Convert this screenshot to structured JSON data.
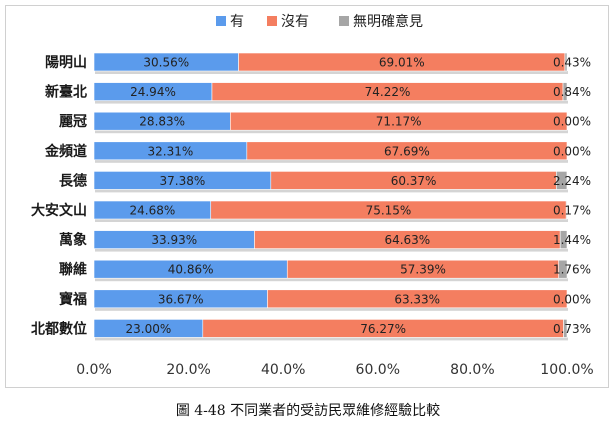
{
  "chart_data": {
    "type": "bar",
    "orientation": "horizontal",
    "stacked": "percent",
    "categories": [
      "陽明山",
      "新臺北",
      "麗冠",
      "金頻道",
      "長德",
      "大安文山",
      "萬象",
      "聯維",
      "寶福",
      "北都數位"
    ],
    "series": [
      {
        "name": "有",
        "color": "#5b9bec",
        "values": [
          30.56,
          24.94,
          28.83,
          32.31,
          37.38,
          24.68,
          33.93,
          40.86,
          36.67,
          23.0
        ],
        "labels": [
          "30.56%",
          "24.94%",
          "28.83%",
          "32.31%",
          "37.38%",
          "24.68%",
          "33.93%",
          "40.86%",
          "36.67%",
          "23.00%"
        ]
      },
      {
        "name": "沒有",
        "color": "#f47e60",
        "values": [
          69.01,
          74.22,
          71.17,
          67.69,
          60.37,
          75.15,
          64.63,
          57.39,
          63.33,
          76.27
        ],
        "labels": [
          "69.01%",
          "74.22%",
          "71.17%",
          "67.69%",
          "60.37%",
          "75.15%",
          "64.63%",
          "57.39%",
          "63.33%",
          "76.27%"
        ]
      },
      {
        "name": "無明確意見",
        "color": "#a6a6a6",
        "values": [
          0.43,
          0.84,
          0.0,
          0.0,
          2.24,
          0.17,
          1.44,
          1.76,
          0.0,
          0.73
        ],
        "labels": [
          "0.43%",
          "0.84%",
          "0.00%",
          "0.00%",
          "2.24%",
          "0.17%",
          "1.44%",
          "1.76%",
          "0.00%",
          "0.73%"
        ]
      }
    ],
    "xlim": [
      0,
      100
    ],
    "xticks": [
      "0.0%",
      "20.0%",
      "40.0%",
      "60.0%",
      "80.0%",
      "100.0%"
    ],
    "legend_position": "top",
    "grid": false
  },
  "caption": "圖 4-48 不同業者的受訪民眾維修經驗比較"
}
